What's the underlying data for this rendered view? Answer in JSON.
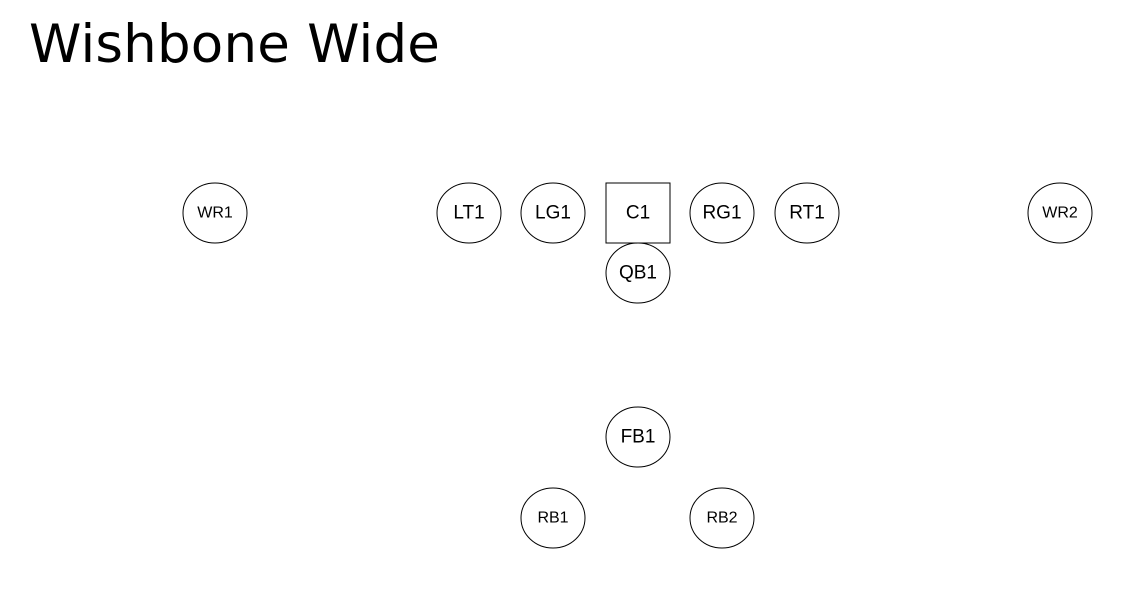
{
  "title": "Wishbone Wide",
  "players": [
    {
      "id": "wr1",
      "label": "WR1",
      "shape": "circle"
    },
    {
      "id": "lt1",
      "label": "LT1",
      "shape": "circle"
    },
    {
      "id": "lg1",
      "label": "LG1",
      "shape": "circle"
    },
    {
      "id": "c1",
      "label": "C1",
      "shape": "square"
    },
    {
      "id": "rg1",
      "label": "RG1",
      "shape": "circle"
    },
    {
      "id": "rt1",
      "label": "RT1",
      "shape": "circle"
    },
    {
      "id": "wr2",
      "label": "WR2",
      "shape": "circle"
    },
    {
      "id": "qb1",
      "label": "QB1",
      "shape": "circle"
    },
    {
      "id": "fb1",
      "label": "FB1",
      "shape": "circle"
    },
    {
      "id": "rb1",
      "label": "RB1",
      "shape": "circle"
    },
    {
      "id": "rb2",
      "label": "RB2",
      "shape": "circle"
    }
  ]
}
